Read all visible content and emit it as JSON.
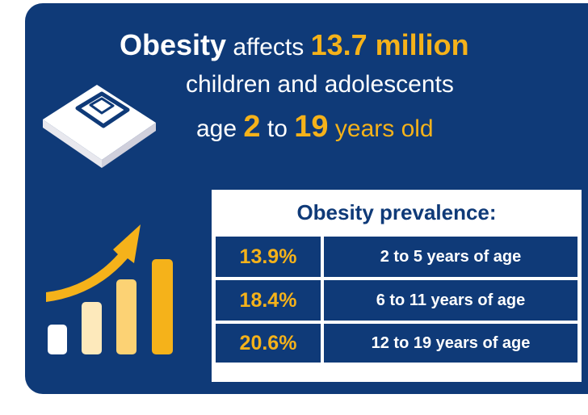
{
  "headline": {
    "obesity": "Obesity",
    "affects": "affects",
    "count": "13.7 million",
    "line2": "children and adolescents",
    "age_word": "age",
    "age_from": "2",
    "to_word": "to",
    "age_to": "19",
    "years_old": "years old"
  },
  "icons": {
    "scale": "bathroom-scale-icon",
    "growth": "growth-bars-arrow-icon"
  },
  "prevalence": {
    "title": "Obesity prevalence:",
    "rows": [
      {
        "percent": "13.9%",
        "age": "2 to 5 years of age"
      },
      {
        "percent": "18.4%",
        "age": "6 to 11 years of age"
      },
      {
        "percent": "20.6%",
        "age": "12 to 19 years of age"
      }
    ]
  },
  "colors": {
    "background": "#0f3a78",
    "accent": "#f5b21a",
    "text": "#ffffff"
  }
}
